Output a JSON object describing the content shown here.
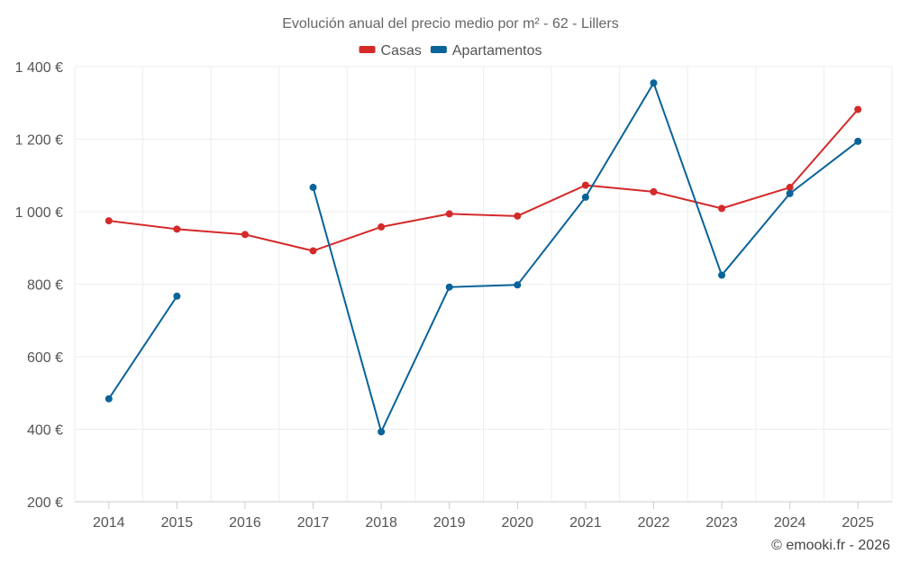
{
  "chart_data": {
    "type": "line",
    "title": "Evolución anual del precio medio por m² - 62 - Lillers",
    "categories": [
      "2014",
      "2015",
      "2016",
      "2017",
      "2018",
      "2019",
      "2020",
      "2021",
      "2022",
      "2023",
      "2024",
      "2025"
    ],
    "series": [
      {
        "name": "Casas",
        "color": "#d42a2a",
        "values": [
          975,
          952,
          937,
          892,
          958,
          994,
          988,
          1073,
          1055,
          1009,
          1067,
          1282
        ]
      },
      {
        "name": "Apartamentos",
        "color": "#0a6399",
        "values": [
          484,
          767,
          null,
          1067,
          393,
          792,
          798,
          1040,
          1355,
          825,
          1050,
          1194
        ]
      }
    ],
    "ylim": [
      200,
      1400
    ],
    "yticks": [
      200,
      400,
      600,
      800,
      1000,
      1200,
      1400
    ],
    "ytick_labels": [
      "200 €",
      "400 €",
      "600 €",
      "800 €",
      "1 000 €",
      "1 200 €",
      "1 400 €"
    ],
    "grid": true,
    "legend": "top-center",
    "xlabel": "",
    "ylabel": ""
  },
  "credit": "© emooki.fr - 2026"
}
